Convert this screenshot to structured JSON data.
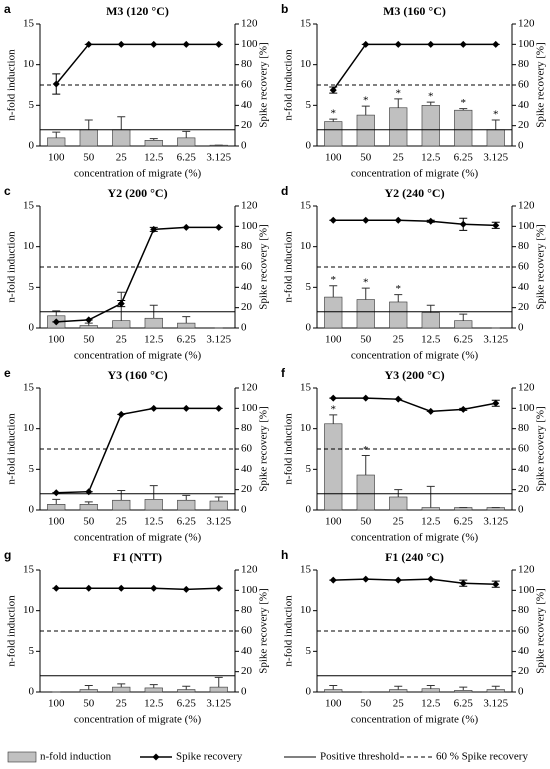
{
  "chart_data": [
    {
      "type": "bar",
      "panel_label": "a",
      "title": "M3 (120 °C)",
      "xlabel": "concentration of migrate (%)",
      "ylabel": "n-fold induction",
      "y2label": "Spike recovery [%]",
      "categories": [
        "100",
        "50",
        "25",
        "12.5",
        "6.25",
        "3.125"
      ],
      "series": [
        {
          "name": "n-fold induction",
          "color": "#c0c0c0",
          "values": [
            1.0,
            2.0,
            2.0,
            0.7,
            1.0,
            0.1
          ],
          "errors": [
            0.7,
            1.2,
            1.6,
            0.2,
            0.8,
            0
          ]
        },
        {
          "name": "Spike recovery",
          "color": "#000000",
          "axis": "y2",
          "values": [
            61,
            100,
            100,
            100,
            100,
            100
          ],
          "errors": [
            10,
            0,
            0,
            0,
            0,
            0
          ]
        }
      ],
      "significance": [
        null,
        null,
        null,
        null,
        null,
        null
      ],
      "reference_lines": [
        {
          "name": "Positive threshold",
          "value": 2,
          "axis": "y",
          "style": "solid"
        },
        {
          "name": "60 % Spike recovery",
          "value": 60,
          "axis": "y2",
          "style": "dashed"
        }
      ],
      "ylim": [
        0,
        15
      ],
      "yticks": [
        0,
        5,
        10,
        15
      ],
      "y2lim": [
        0,
        120
      ],
      "y2ticks": [
        0,
        20,
        40,
        60,
        80,
        100,
        120
      ]
    },
    {
      "type": "bar",
      "panel_label": "b",
      "title": "M3 (160 °C)",
      "xlabel": "concentration of migrate (%)",
      "ylabel": "n-fold induction",
      "y2label": "Spike recovery [%]",
      "categories": [
        "100",
        "50",
        "25",
        "12.5",
        "6.25",
        "3.125"
      ],
      "series": [
        {
          "name": "n-fold induction",
          "color": "#c0c0c0",
          "values": [
            3.0,
            3.8,
            4.7,
            5.0,
            4.4,
            2.0
          ],
          "errors": [
            0.3,
            1.1,
            1.1,
            0.4,
            0.2,
            1.2
          ]
        },
        {
          "name": "Spike recovery",
          "color": "#000000",
          "axis": "y2",
          "values": [
            55,
            100,
            100,
            100,
            100,
            100
          ],
          "errors": [
            3,
            0,
            0,
            0,
            0,
            0
          ]
        }
      ],
      "significance": [
        "*",
        "*",
        "*",
        "*",
        "*",
        "*"
      ],
      "reference_lines": [
        {
          "name": "Positive threshold",
          "value": 2,
          "axis": "y",
          "style": "solid"
        },
        {
          "name": "60 % Spike recovery",
          "value": 60,
          "axis": "y2",
          "style": "dashed"
        }
      ],
      "ylim": [
        0,
        15
      ],
      "yticks": [
        0,
        5,
        10,
        15
      ],
      "y2lim": [
        0,
        120
      ],
      "y2ticks": [
        0,
        20,
        40,
        60,
        80,
        100,
        120
      ]
    },
    {
      "type": "bar",
      "panel_label": "c",
      "title": "Y2 (200 °C)",
      "xlabel": "concentration of migrate (%)",
      "ylabel": "n-fold induction",
      "y2label": "Spike recovery [%]",
      "categories": [
        "100",
        "50",
        "25",
        "12.5",
        "6.25",
        "3.125"
      ],
      "series": [
        {
          "name": "n-fold induction",
          "color": "#c0c0c0",
          "values": [
            1.5,
            0.3,
            0.9,
            1.2,
            0.6,
            0
          ],
          "errors": [
            0.6,
            0.3,
            3.5,
            1.6,
            0.8,
            0
          ]
        },
        {
          "name": "Spike recovery",
          "color": "#000000",
          "axis": "y2",
          "values": [
            6,
            8,
            24,
            97,
            99,
            99
          ],
          "errors": [
            0,
            0,
            3,
            2,
            0,
            0
          ]
        }
      ],
      "significance": [
        null,
        null,
        null,
        null,
        null,
        null
      ],
      "reference_lines": [
        {
          "name": "Positive threshold",
          "value": 2,
          "axis": "y",
          "style": "solid"
        },
        {
          "name": "60 % Spike recovery",
          "value": 60,
          "axis": "y2",
          "style": "dashed"
        }
      ],
      "ylim": [
        0,
        15
      ],
      "yticks": [
        0,
        5,
        10,
        15
      ],
      "y2lim": [
        0,
        120
      ],
      "y2ticks": [
        0,
        20,
        40,
        60,
        80,
        100,
        120
      ]
    },
    {
      "type": "bar",
      "panel_label": "d",
      "title": "Y2 (240 °C)",
      "xlabel": "concentration of migrate (%)",
      "ylabel": "n-fold induction",
      "y2label": "Spike recovery [%]",
      "categories": [
        "100",
        "50",
        "25",
        "12.5",
        "6.25",
        "3.125"
      ],
      "series": [
        {
          "name": "n-fold induction",
          "color": "#c0c0c0",
          "values": [
            3.8,
            3.5,
            3.2,
            1.9,
            0.9,
            0
          ],
          "errors": [
            1.4,
            1.4,
            0.9,
            0.9,
            0.8,
            0
          ]
        },
        {
          "name": "Spike recovery",
          "color": "#000000",
          "axis": "y2",
          "values": [
            106,
            106,
            106,
            105,
            102,
            101
          ],
          "errors": [
            0,
            0,
            0,
            1,
            6,
            3
          ]
        }
      ],
      "significance": [
        "*",
        "*",
        "*",
        null,
        null,
        null
      ],
      "reference_lines": [
        {
          "name": "Positive threshold",
          "value": 2,
          "axis": "y",
          "style": "solid"
        },
        {
          "name": "60 % Spike recovery",
          "value": 60,
          "axis": "y2",
          "style": "dashed"
        }
      ],
      "ylim": [
        0,
        15
      ],
      "yticks": [
        0,
        5,
        10,
        15
      ],
      "y2lim": [
        0,
        120
      ],
      "y2ticks": [
        0,
        20,
        40,
        60,
        80,
        100,
        120
      ]
    },
    {
      "type": "bar",
      "panel_label": "e",
      "title": "Y3 (160 °C)",
      "xlabel": "concentration of migrate (%)",
      "ylabel": "n-fold induction",
      "y2label": "Spike recovery [%]",
      "categories": [
        "100",
        "50",
        "25",
        "12.5",
        "6.25",
        "3.125"
      ],
      "series": [
        {
          "name": "n-fold induction",
          "color": "#c0c0c0",
          "values": [
            0.7,
            0.7,
            1.2,
            1.3,
            1.2,
            1.1
          ],
          "errors": [
            0.6,
            0.3,
            1.2,
            1.7,
            0.6,
            0.5
          ]
        },
        {
          "name": "Spike recovery",
          "color": "#000000",
          "axis": "y2",
          "values": [
            17,
            18,
            94,
            100,
            100,
            100
          ],
          "errors": [
            0,
            0,
            0,
            0,
            0,
            0
          ]
        }
      ],
      "significance": [
        null,
        null,
        null,
        null,
        null,
        null
      ],
      "reference_lines": [
        {
          "name": "Positive threshold",
          "value": 2,
          "axis": "y",
          "style": "solid"
        },
        {
          "name": "60 % Spike recovery",
          "value": 60,
          "axis": "y2",
          "style": "dashed"
        }
      ],
      "ylim": [
        0,
        15
      ],
      "yticks": [
        0,
        5,
        10,
        15
      ],
      "y2lim": [
        0,
        120
      ],
      "y2ticks": [
        0,
        20,
        40,
        60,
        80,
        100,
        120
      ]
    },
    {
      "type": "bar",
      "panel_label": "f",
      "title": "Y3 (200 °C)",
      "xlabel": "concentration of migrate (%)",
      "ylabel": "n-fold induction",
      "y2label": "Spike recovery [%]",
      "categories": [
        "100",
        "50",
        "25",
        "12.5",
        "6.25",
        "3.125"
      ],
      "series": [
        {
          "name": "n-fold induction",
          "color": "#c0c0c0",
          "values": [
            10.6,
            4.3,
            1.6,
            0.3,
            0.3,
            0.3
          ],
          "errors": [
            1.1,
            2.4,
            0.9,
            2.6,
            0,
            0
          ]
        },
        {
          "name": "Spike recovery",
          "color": "#000000",
          "axis": "y2",
          "values": [
            110,
            110,
            109,
            97,
            99,
            105
          ],
          "errors": [
            0,
            0,
            0,
            0,
            1,
            3
          ]
        }
      ],
      "significance": [
        "*",
        "*",
        null,
        null,
        null,
        null
      ],
      "reference_lines": [
        {
          "name": "Positive threshold",
          "value": 2,
          "axis": "y",
          "style": "solid"
        },
        {
          "name": "60 % Spike recovery",
          "value": 60,
          "axis": "y2",
          "style": "dashed"
        }
      ],
      "ylim": [
        0,
        15
      ],
      "yticks": [
        0,
        5,
        10,
        15
      ],
      "y2lim": [
        0,
        120
      ],
      "y2ticks": [
        0,
        20,
        40,
        60,
        80,
        100,
        120
      ]
    },
    {
      "type": "bar",
      "panel_label": "g",
      "title": "F1 (NTT)",
      "xlabel": "concentration of migrate (%)",
      "ylabel": "n-fold induction",
      "y2label": "Spike recovery [%]",
      "categories": [
        "100",
        "50",
        "25",
        "12.5",
        "6.25",
        "3.125"
      ],
      "series": [
        {
          "name": "n-fold induction",
          "color": "#c0c0c0",
          "values": [
            0,
            0.3,
            0.6,
            0.5,
            0.3,
            0.6
          ],
          "errors": [
            0,
            0.5,
            0.4,
            0.4,
            0.4,
            1.2
          ]
        },
        {
          "name": "Spike recovery",
          "color": "#000000",
          "axis": "y2",
          "values": [
            102,
            102,
            102,
            102,
            101,
            102
          ],
          "errors": [
            0,
            0,
            0,
            0,
            0,
            0
          ]
        }
      ],
      "significance": [
        null,
        null,
        null,
        null,
        null,
        null
      ],
      "reference_lines": [
        {
          "name": "Positive threshold",
          "value": 2,
          "axis": "y",
          "style": "solid"
        },
        {
          "name": "60 % Spike recovery",
          "value": 60,
          "axis": "y2",
          "style": "dashed"
        }
      ],
      "ylim": [
        0,
        15
      ],
      "yticks": [
        0,
        5,
        10,
        15
      ],
      "y2lim": [
        0,
        120
      ],
      "y2ticks": [
        0,
        20,
        40,
        60,
        80,
        100,
        120
      ]
    },
    {
      "type": "bar",
      "panel_label": "h",
      "title": "F1 (240 °C)",
      "xlabel": "concentration of migrate (%)",
      "ylabel": "n-fold induction",
      "y2label": "Spike recovery [%]",
      "categories": [
        "100",
        "50",
        "25",
        "12.5",
        "6.25",
        "3.125"
      ],
      "series": [
        {
          "name": "n-fold induction",
          "color": "#c0c0c0",
          "values": [
            0.3,
            0,
            0.3,
            0.4,
            0.2,
            0.3
          ],
          "errors": [
            0.5,
            0,
            0.4,
            0.4,
            0.4,
            0.4
          ]
        },
        {
          "name": "Spike recovery",
          "color": "#000000",
          "axis": "y2",
          "values": [
            110,
            111,
            110,
            111,
            107,
            106
          ],
          "errors": [
            0,
            0,
            0,
            0,
            3,
            3
          ]
        }
      ],
      "significance": [
        null,
        null,
        null,
        null,
        null,
        null
      ],
      "reference_lines": [
        {
          "name": "Positive threshold",
          "value": 2,
          "axis": "y",
          "style": "solid"
        },
        {
          "name": "60 % Spike recovery",
          "value": 60,
          "axis": "y2",
          "style": "dashed"
        }
      ],
      "ylim": [
        0,
        15
      ],
      "yticks": [
        0,
        5,
        10,
        15
      ],
      "y2lim": [
        0,
        120
      ],
      "y2ticks": [
        0,
        20,
        40,
        60,
        80,
        100,
        120
      ]
    }
  ]
}
